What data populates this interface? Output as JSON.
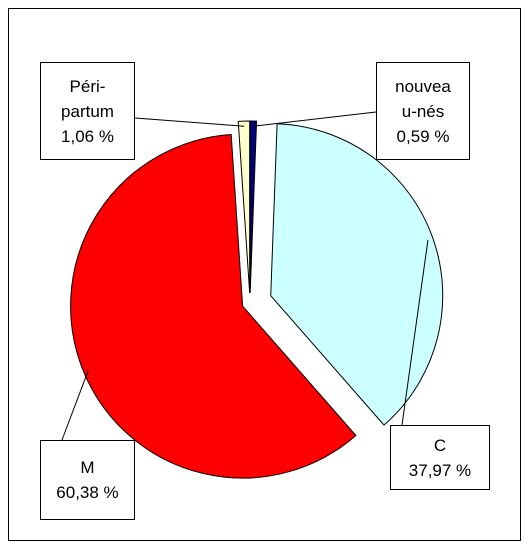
{
  "chart_data": {
    "type": "pie",
    "categories": [
      "nouveau-nés",
      "C",
      "M",
      "Péri-partum"
    ],
    "values": [
      0.59,
      37.97,
      60.38,
      1.06
    ],
    "value_labels": [
      "0,59 %",
      "37,97 %",
      "60,38 %",
      "1,06 %"
    ],
    "colors": [
      "#000080",
      "#ccffff",
      "#ff0000",
      "#ffffcc"
    ]
  }
}
